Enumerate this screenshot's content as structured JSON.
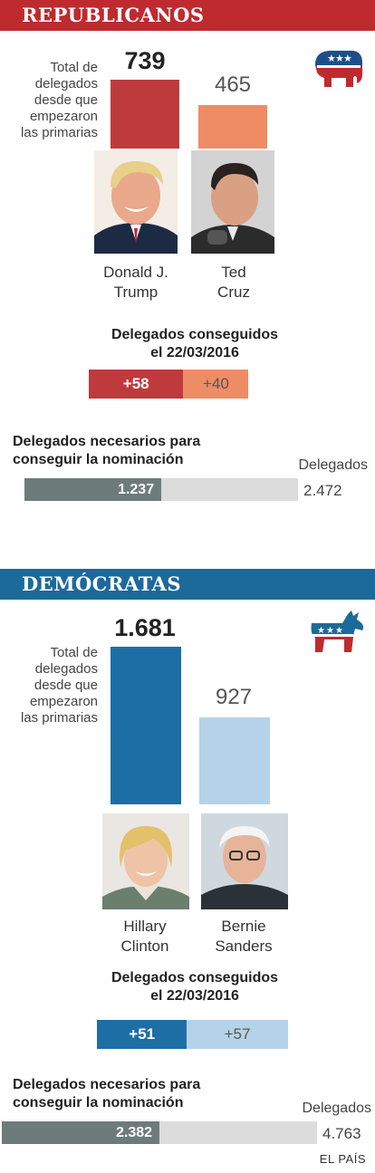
{
  "colors": {
    "rep_header": "#bf2a2f",
    "rep_main": "#bf3a3d",
    "rep_light": "#ee8c66",
    "dem_header": "#1c6a9a",
    "dem_main": "#1e6ea6",
    "dem_light": "#b5d3e8",
    "nec_dark": "#6e7b7b",
    "nec_light": "#dcdcdc"
  },
  "republicans": {
    "title": "REPUBLICANOS",
    "total_label": [
      "Total de",
      "delegados",
      "desde que",
      "empezaron",
      "las primarias"
    ],
    "candidates": [
      {
        "name_lines": [
          "Donald J.",
          "Trump"
        ],
        "total": "739",
        "total_value": 739,
        "gain": "+58"
      },
      {
        "name_lines": [
          "Ted",
          "Cruz"
        ],
        "total": "465",
        "total_value": 465,
        "gain": "+40"
      }
    ],
    "gained_title": [
      "Delegados conseguidos",
      "el 22/03/2016"
    ],
    "needed_title": [
      "Delegados necesarios para",
      "conseguir la nominación"
    ],
    "needed": "1.237",
    "needed_value": 1237,
    "total_delegates_label": "Delegados",
    "total_delegates": "2.472",
    "total_delegates_value": 2472
  },
  "democrats": {
    "title": "DEMÓCRATAS",
    "total_label": [
      "Total de",
      "delegados",
      "desde que",
      "empezaron",
      "las primarias"
    ],
    "candidates": [
      {
        "name_lines": [
          "Hillary",
          "Clinton"
        ],
        "total": "1.681",
        "total_value": 1681,
        "gain": "+51"
      },
      {
        "name_lines": [
          "Bernie",
          "Sanders"
        ],
        "total": "927",
        "total_value": 927,
        "gain": "+57"
      }
    ],
    "gained_title": [
      "Delegados conseguidos",
      "el 22/03/2016"
    ],
    "needed_title": [
      "Delegados necesarios para",
      "conseguir la nominación"
    ],
    "needed": "2.382",
    "needed_value": 2382,
    "total_delegates_label": "Delegados",
    "total_delegates": "4.763",
    "total_delegates_value": 4763
  },
  "credit": "EL PAÍS",
  "chart_data": [
    {
      "type": "bar",
      "title": "REPUBLICANOS",
      "categories": [
        "Donald J. Trump",
        "Ted Cruz"
      ],
      "values": [
        739,
        465
      ],
      "gains_22_03_2016": [
        58,
        40
      ],
      "needed_for_nomination": 1237,
      "total_delegates": 2472
    },
    {
      "type": "bar",
      "title": "DEMÓCRATAS",
      "categories": [
        "Hillary Clinton",
        "Bernie Sanders"
      ],
      "values": [
        1681,
        927
      ],
      "gains_22_03_2016": [
        51,
        57
      ],
      "needed_for_nomination": 2382,
      "total_delegates": 4763
    }
  ]
}
